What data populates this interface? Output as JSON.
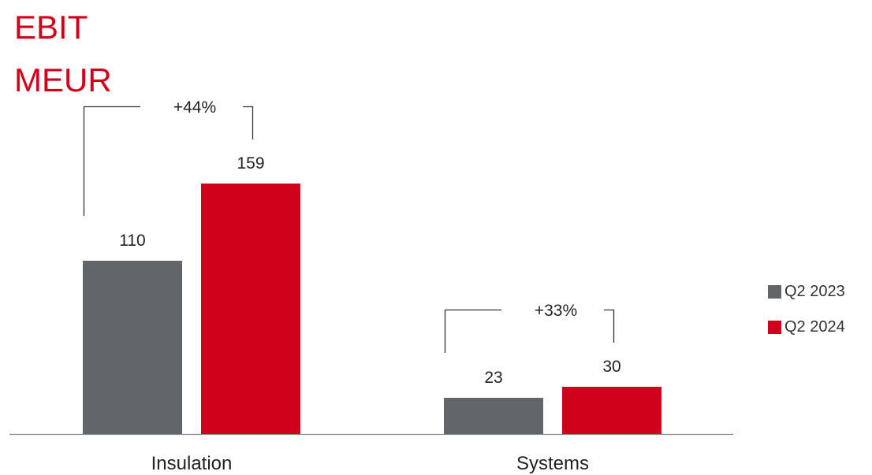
{
  "header": {
    "title_line1": "EBIT",
    "title_line2": "MEUR"
  },
  "colors": {
    "title": "#d0021b",
    "q2_2023": "#626569",
    "q2_2024": "#d0021b",
    "axis": "#8a8a8a",
    "bracket": "#333333",
    "text": "#222222"
  },
  "chart_data": {
    "type": "bar",
    "title": "EBIT MEUR",
    "categories": [
      "Insulation",
      "Systems"
    ],
    "series": [
      {
        "name": "Q2 2023",
        "values": [
          110,
          23
        ]
      },
      {
        "name": "Q2 2024",
        "values": [
          159,
          30
        ]
      }
    ],
    "data_labels": [
      [
        "110",
        "23"
      ],
      [
        "159",
        "30"
      ]
    ],
    "growth_annotations": [
      "+44%",
      "+33%"
    ],
    "xlabel": "",
    "ylabel": "",
    "ylim": [
      0,
      159
    ],
    "grid": false,
    "legend_position": "right"
  }
}
